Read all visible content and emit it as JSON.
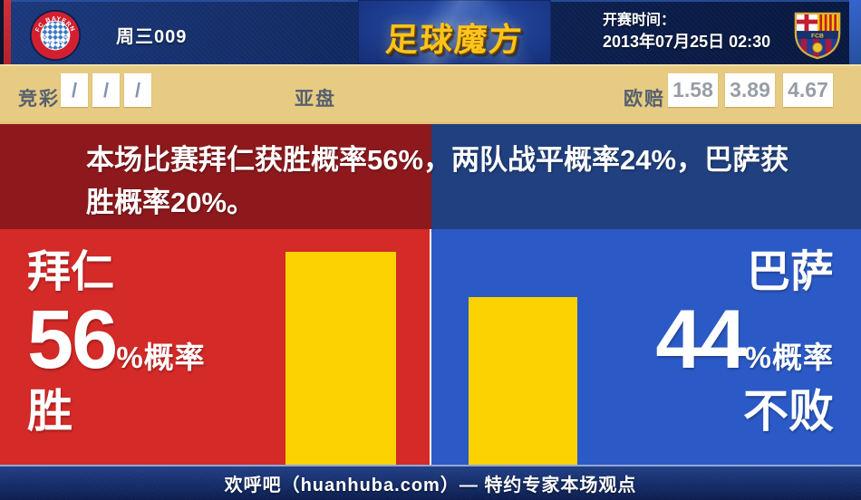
{
  "topbar": {
    "match_code": "周三009",
    "site_logo_text": "足球魔方",
    "kickoff_label": "开赛时间：",
    "kickoff_datetime": "2013年07月25日 02:30",
    "bayern_ring_top": "FC BAYERN",
    "bayern_ring_bottom": "MÜNCHEN",
    "barca_band_text": "FCB"
  },
  "odds_bar": {
    "jingcai_label": "竞彩",
    "jingcai_values": [
      "/",
      "/",
      "/"
    ],
    "yapan_label": "亚盘",
    "oupei_label": "欧赔",
    "oupei_values": [
      "1.58",
      "3.89",
      "4.67"
    ]
  },
  "headline": {
    "full_text": "本场比赛拜仁获胜概率56%，两队战平概率24%，巴萨获胜概率20%。",
    "lines": [
      "本场比赛拜仁获胜概率56%，两队战平概率24%，巴萨获",
      "胜概率20%。"
    ]
  },
  "home_panel": {
    "team": "拜仁",
    "probability": "56",
    "suffix": "%概率",
    "outcome": "胜"
  },
  "away_panel": {
    "team": "巴萨",
    "probability": "44",
    "suffix": "%概率",
    "outcome": "不败"
  },
  "footer": {
    "text": "欢呼吧（huanhuba.com）— 特约专家本场观点"
  },
  "chart_data": {
    "type": "bar",
    "categories": [
      "拜仁 胜",
      "巴萨 不败"
    ],
    "values": [
      56,
      44
    ],
    "unit": "%",
    "bar_color": "#fcd203",
    "ylim": [
      0,
      100
    ],
    "annotations": {
      "home_win_pct": 56,
      "draw_pct": 24,
      "away_win_pct": 20
    }
  },
  "colors": {
    "home_dark": "#8d191d",
    "home_main": "#d42a28",
    "away_dark": "#21407f",
    "away_main": "#2b5ac6",
    "bar_yellow": "#fcd203",
    "odds_bar_bg": "#e7cb82",
    "topbar_navy": "#122a63",
    "logo_gold": "#ffc41a"
  }
}
